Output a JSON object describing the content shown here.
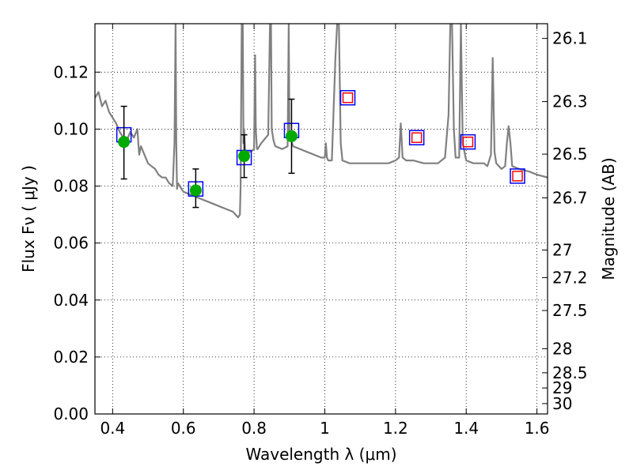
{
  "chart_data": {
    "type": "line",
    "xlabel": "Wavelength  λ (μm)",
    "ylabel": "Flux  Fν  ( μJy )",
    "y2label": "Magnitude (AB)",
    "xlim": [
      0.35,
      1.63
    ],
    "ylim": [
      0.0,
      0.137
    ],
    "grid": true,
    "x_ticks": [
      0.4,
      0.6,
      0.8,
      1.0,
      1.2,
      1.4,
      1.6
    ],
    "x_tick_labels": [
      "0.4",
      "0.6",
      "0.8",
      "1",
      "1.2",
      "1.4",
      "1.6"
    ],
    "y_ticks": [
      0.0,
      0.02,
      0.04,
      0.06,
      0.08,
      0.1,
      0.12
    ],
    "y_tick_labels": [
      "0.00",
      "0.02",
      "0.04",
      "0.06",
      "0.08",
      "0.10",
      "0.12"
    ],
    "mag_ticks": [
      {
        "mag": 26.1,
        "label": "26.1"
      },
      {
        "mag": 26.3,
        "label": "26.3"
      },
      {
        "mag": 26.5,
        "label": "26.5"
      },
      {
        "mag": 26.7,
        "label": "26.7"
      },
      {
        "mag": 27.0,
        "label": "27"
      },
      {
        "mag": 27.2,
        "label": "27.2"
      },
      {
        "mag": 27.5,
        "label": "27.5"
      },
      {
        "mag": 28.0,
        "label": "28"
      },
      {
        "mag": 28.5,
        "label": "28.5"
      },
      {
        "mag": 29.0,
        "label": "29"
      },
      {
        "mag": 30.0,
        "label": "30"
      }
    ],
    "series": [
      {
        "kind": "line",
        "color": "#808080",
        "x": [
          0.35,
          0.36,
          0.37,
          0.38,
          0.39,
          0.4,
          0.41,
          0.42,
          0.43,
          0.44,
          0.45,
          0.46,
          0.47,
          0.475,
          0.48,
          0.49,
          0.5,
          0.51,
          0.52,
          0.53,
          0.54,
          0.55,
          0.56,
          0.57,
          0.575,
          0.578,
          0.58,
          0.582,
          0.585,
          0.59,
          0.6,
          0.62,
          0.64,
          0.66,
          0.68,
          0.7,
          0.72,
          0.74,
          0.755,
          0.76,
          0.762,
          0.765,
          0.768,
          0.77,
          0.772,
          0.775,
          0.78,
          0.79,
          0.8,
          0.803,
          0.805,
          0.808,
          0.81,
          0.82,
          0.84,
          0.845,
          0.848,
          0.85,
          0.855,
          0.86,
          0.88,
          0.895,
          0.898,
          0.9,
          0.903,
          0.91,
          0.93,
          0.95,
          0.97,
          0.99,
          1.0,
          1.003,
          1.006,
          1.01,
          1.02,
          1.03,
          1.035,
          1.04,
          1.045,
          1.05,
          1.07,
          1.09,
          1.12,
          1.15,
          1.18,
          1.2,
          1.21,
          1.215,
          1.22,
          1.23,
          1.25,
          1.28,
          1.3,
          1.32,
          1.34,
          1.35,
          1.355,
          1.36,
          1.365,
          1.37,
          1.38,
          1.385,
          1.39,
          1.4,
          1.42,
          1.45,
          1.46,
          1.47,
          1.475,
          1.48,
          1.485,
          1.5,
          1.51,
          1.515,
          1.52,
          1.525,
          1.53,
          1.55,
          1.58,
          1.6,
          1.63
        ],
        "y": [
          0.111,
          0.113,
          0.108,
          0.11,
          0.106,
          0.104,
          0.102,
          0.099,
          0.097,
          0.096,
          0.099,
          0.097,
          0.1,
          0.091,
          0.094,
          0.091,
          0.088,
          0.087,
          0.086,
          0.084,
          0.083,
          0.083,
          0.081,
          0.08,
          0.095,
          0.137,
          0.095,
          0.079,
          0.081,
          0.08,
          0.078,
          0.077,
          0.076,
          0.075,
          0.074,
          0.073,
          0.072,
          0.071,
          0.069,
          0.07,
          0.08,
          0.137,
          0.137,
          0.095,
          0.1,
          0.092,
          0.092,
          0.092,
          0.093,
          0.126,
          0.1,
          0.093,
          0.093,
          0.095,
          0.098,
          0.137,
          0.137,
          0.1,
          0.096,
          0.094,
          0.093,
          0.094,
          0.137,
          0.098,
          0.097,
          0.094,
          0.093,
          0.092,
          0.091,
          0.09,
          0.09,
          0.095,
          0.09,
          0.089,
          0.089,
          0.125,
          0.137,
          0.137,
          0.095,
          0.089,
          0.088,
          0.088,
          0.088,
          0.088,
          0.088,
          0.089,
          0.09,
          0.102,
          0.09,
          0.089,
          0.089,
          0.088,
          0.088,
          0.088,
          0.09,
          0.105,
          0.137,
          0.137,
          0.1,
          0.09,
          0.09,
          0.137,
          0.095,
          0.089,
          0.088,
          0.088,
          0.087,
          0.091,
          0.125,
          0.092,
          0.088,
          0.086,
          0.087,
          0.095,
          0.101,
          0.095,
          0.087,
          0.086,
          0.085,
          0.084,
          0.083
        ]
      },
      {
        "kind": "points",
        "marker": "square-open",
        "color": "#0000ff",
        "x": [
          0.432,
          0.635,
          0.772,
          0.906,
          1.065,
          1.26,
          1.405,
          1.545
        ],
        "y": [
          0.098,
          0.079,
          0.09,
          0.0995,
          0.111,
          0.097,
          0.0955,
          0.0835
        ]
      },
      {
        "kind": "points",
        "marker": "square-open-small",
        "color": "#ff0000",
        "x": [
          1.065,
          1.26,
          1.405,
          1.545
        ],
        "y": [
          0.111,
          0.097,
          0.0955,
          0.0835
        ]
      },
      {
        "kind": "points",
        "marker": "circle",
        "color": "#00aa00",
        "x": [
          0.432,
          0.635,
          0.772,
          0.906
        ],
        "y": [
          0.0955,
          0.0785,
          0.0905,
          0.0975
        ],
        "yerr_low": [
          0.0825,
          0.0725,
          0.083,
          0.0845
        ],
        "yerr_high": [
          0.108,
          0.086,
          0.098,
          0.1105
        ]
      }
    ]
  }
}
